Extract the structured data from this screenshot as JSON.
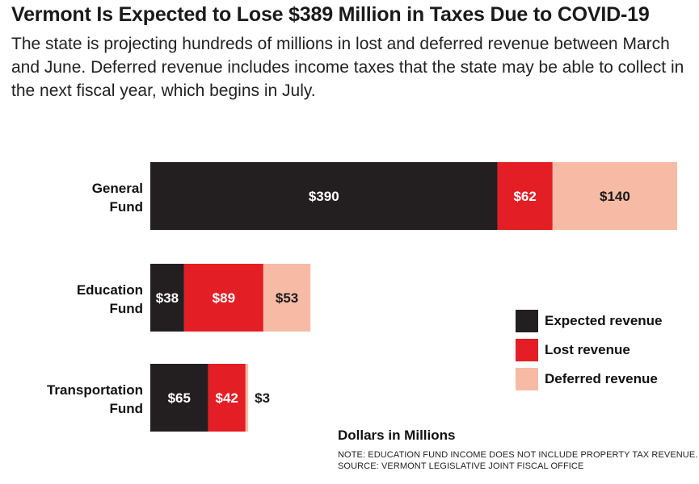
{
  "header": {
    "title": "Vermont Is Expected to Lose $389 Million in Taxes Due to COVID-19",
    "subtitle": "The state is projecting hundreds of millions in lost and deferred revenue between March and June. Deferred revenue includes income taxes that the state may be able to collect in the next fiscal year, which begins in July."
  },
  "chart_data": {
    "type": "bar",
    "orientation": "horizontal",
    "stacked": true,
    "title": "Vermont Is Expected to Lose $389 Million in Taxes Due to COVID-19",
    "categories": [
      {
        "line1": "General",
        "line2": "Fund"
      },
      {
        "line1": "Education",
        "line2": "Fund"
      },
      {
        "line1": "Transportation",
        "line2": "Fund"
      }
    ],
    "series": [
      {
        "name": "Expected revenue",
        "color": "#231f20",
        "label_color": "#ffffff",
        "values": [
          390,
          38,
          65
        ],
        "labels": [
          "$390",
          "$38",
          "$65"
        ]
      },
      {
        "name": "Lost revenue",
        "color": "#e31e24",
        "label_color": "#ffffff",
        "values": [
          62,
          89,
          42
        ],
        "labels": [
          "$62",
          "$89",
          "$42"
        ]
      },
      {
        "name": "Deferred revenue",
        "color": "#f7bba5",
        "label_color": "#1a1a1a",
        "values": [
          140,
          53,
          3
        ],
        "labels": [
          "$140",
          "$53",
          "$3"
        ]
      }
    ],
    "xlabel": "Dollars in Millions",
    "xlim": [
      0,
      592
    ],
    "grid": false,
    "legend_position": "right"
  },
  "legend": {
    "items": [
      {
        "label": "Expected revenue",
        "color": "#231f20"
      },
      {
        "label": "Lost revenue",
        "color": "#e31e24"
      },
      {
        "label": "Deferred revenue",
        "color": "#f7bba5"
      }
    ]
  },
  "footer": {
    "units": "Dollars in Millions",
    "note": "NOTE: EDUCATION FUND INCOME DOES NOT INCLUDE PROPERTY TAX REVENUE.",
    "source": "SOURCE: VERMONT LEGISLATIVE JOINT FISCAL OFFICE"
  }
}
